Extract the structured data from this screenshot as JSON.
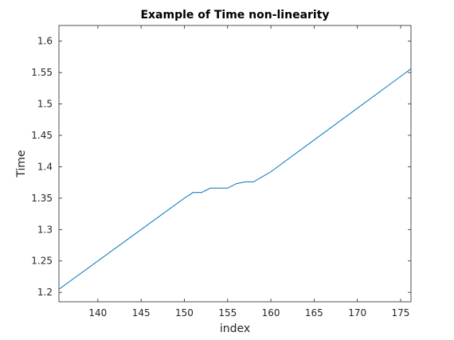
{
  "chart_data": {
    "type": "line",
    "title": "Example of Time non-linearity",
    "xlabel": "index",
    "ylabel": "Time",
    "xlim": [
      135.5,
      176.2
    ],
    "ylim": [
      1.185,
      1.625
    ],
    "xticks": [
      140,
      145,
      150,
      155,
      160,
      165,
      170,
      175
    ],
    "yticks": [
      1.2,
      1.25,
      1.3,
      1.35,
      1.4,
      1.45,
      1.5,
      1.55,
      1.6
    ],
    "xtick_labels": [
      "140",
      "145",
      "150",
      "155",
      "160",
      "165",
      "170",
      "175"
    ],
    "ytick_labels": [
      "1.2",
      "1.25",
      "1.3",
      "1.35",
      "1.4",
      "1.45",
      "1.5",
      "1.55",
      "1.6"
    ],
    "grid": false,
    "legend": "none",
    "series": [
      {
        "color": "#0072BD",
        "x": [
          135.5,
          150,
          151,
          152,
          153,
          154,
          155,
          156,
          157,
          158,
          159,
          160,
          176.2
        ],
        "y": [
          1.205,
          1.35,
          1.359,
          1.359,
          1.366,
          1.366,
          1.366,
          1.373,
          1.376,
          1.376,
          1.384,
          1.392,
          1.556
        ]
      }
    ]
  }
}
